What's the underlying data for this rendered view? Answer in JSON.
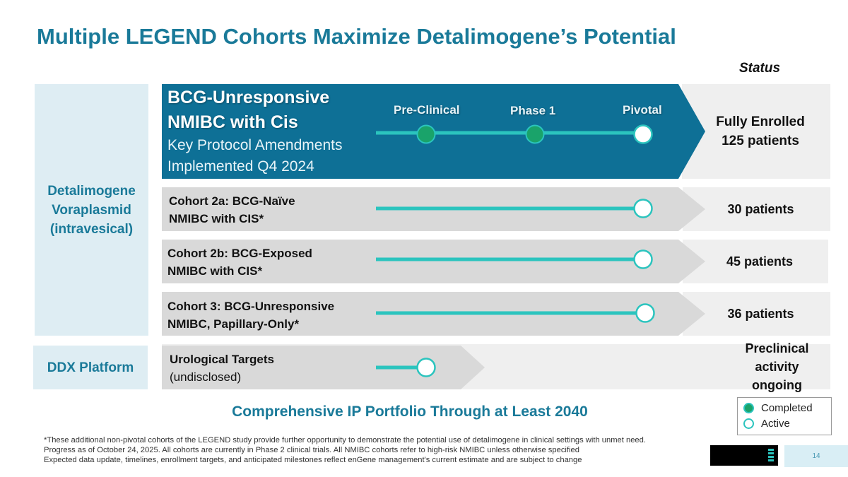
{
  "title": "Multiple LEGEND Cohorts Maximize Detalimogene’s Potential",
  "status_header": "Status",
  "left_labels": {
    "detalimogene": [
      "Detalimogene",
      "Voraplasmid",
      "(intravesical)"
    ],
    "ddx": "DDX Platform"
  },
  "phases": [
    "Pre-Clinical",
    "Phase 1",
    "Pivotal"
  ],
  "rows": [
    {
      "title_lines": [
        "BCG-Unresponsive",
        "NMIBC with Cis"
      ],
      "sub_lines": [
        "Key Protocol Amendments",
        "Implemented Q4 2024"
      ],
      "progress": "Pivotal",
      "completed": [
        "Pre-Clinical",
        "Phase 1"
      ],
      "active": "Pivotal",
      "status_lines": [
        "Fully Enrolled",
        "125 patients"
      ]
    },
    {
      "title_lines": [
        "Cohort 2a: BCG-Naïve",
        "NMIBC with CIS*"
      ],
      "progress": "Pivotal",
      "active": "Pivotal",
      "status_lines": [
        "30 patients"
      ]
    },
    {
      "title_lines": [
        "Cohort 2b: BCG-Exposed",
        "NMIBC with CIS*"
      ],
      "progress": "Pivotal",
      "active": "Pivotal",
      "status_lines": [
        "45 patients"
      ]
    },
    {
      "title_lines": [
        "Cohort 3: BCG-Unresponsive",
        "NMIBC, Papillary-Only*"
      ],
      "progress": "Pivotal",
      "active": "Pivotal",
      "status_lines": [
        "36 patients"
      ]
    },
    {
      "title_lines": [
        "Urological Targets"
      ],
      "sub_lines": [
        "(undisclosed)"
      ],
      "progress": "Pre-Clinical",
      "active": "Pre-Clinical",
      "status_lines": [
        "Preclinical activity",
        "ongoing"
      ]
    }
  ],
  "ip_text": "Comprehensive IP Portfolio Through at Least 2040",
  "legend": {
    "completed": "Completed",
    "active": "Active"
  },
  "footnotes": [
    "*These additional non-pivotal cohorts of the LEGEND study provide further opportunity to demonstrate the potential use of detalimogene in clinical settings with unmet need.",
    "Progress as of October 24, 2025. All cohorts are currently in Phase 2 clinical trials. All NMIBC cohorts refer to high-risk NMIBC unless otherwise specified",
    "Expected data update, timelines, enrollment targets, and anticipated milestones reflect enGene management's current estimate and are subject to change"
  ],
  "page_number": "14",
  "colors": {
    "primary": "#1a7a99",
    "main_arrow": "#0e7096",
    "cohort_arrow": "#d9d9d9",
    "line": "#2bc4be",
    "completed_dot": "#1aa36a",
    "left_bg": "#deedf3",
    "status_bg": "#efefef"
  }
}
